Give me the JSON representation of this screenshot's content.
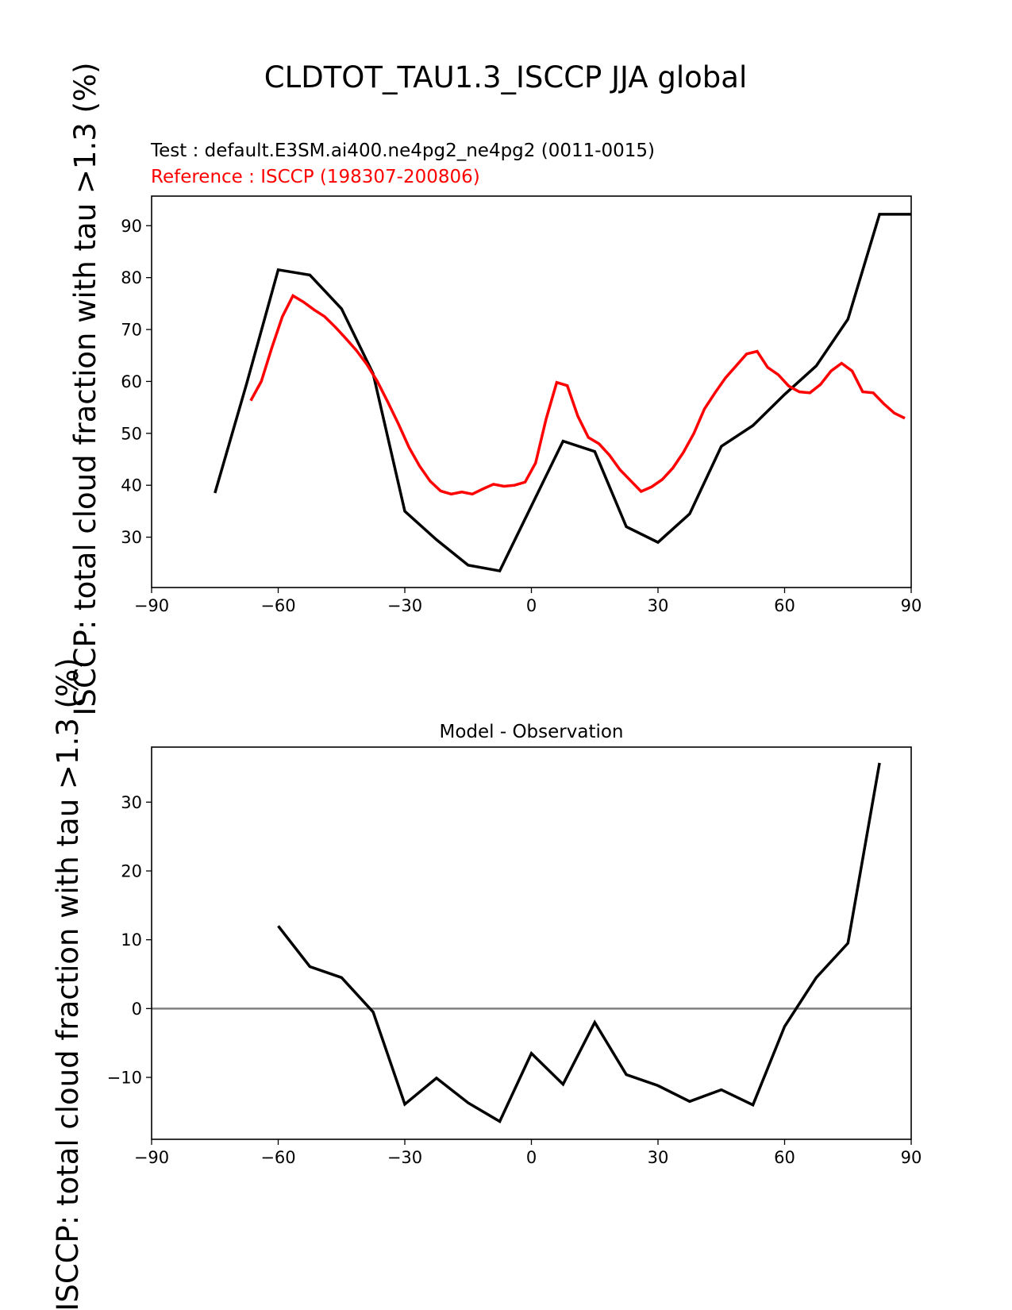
{
  "figure": {
    "title": "CLDTOT_TAU1.3_ISCCP JJA global",
    "test_label": "Test : default.E3SM.ai400.ne4pg2_ne4pg2 (0011-0015)",
    "reference_label": "Reference : ISCCP (198307-200806)",
    "colors": {
      "test": "#000000",
      "reference": "#ff0000",
      "zero_line": "#808080"
    }
  },
  "chart_data": [
    {
      "type": "line",
      "title": "",
      "xlabel": "",
      "ylabel": "ISCCP: total cloud fraction with tau >1.3 (%)",
      "xlim": [
        -90,
        90
      ],
      "ylim": [
        20.3,
        95.7
      ],
      "xticks": [
        -90,
        -60,
        -30,
        0,
        30,
        60,
        90
      ],
      "xtick_labels": [
        "−90",
        "−60",
        "−30",
        "0",
        "30",
        "60",
        "90"
      ],
      "yticks": [
        30,
        40,
        50,
        60,
        70,
        80,
        90
      ],
      "ytick_labels": [
        "30",
        "40",
        "50",
        "60",
        "70",
        "80",
        "90"
      ],
      "grid": false,
      "series": [
        {
          "name": "Test : default.E3SM.ai400.ne4pg2_ne4pg2 (0011-0015)",
          "color": "#000000",
          "x": [
            -75,
            -67.5,
            -60,
            -52.5,
            -45,
            -37.5,
            -30,
            -22.5,
            -15,
            -7.5,
            0,
            7.5,
            15,
            22.5,
            30,
            37.5,
            45,
            52.5,
            60,
            67.5,
            75,
            82.5,
            90
          ],
          "y": [
            38.5,
            59.5,
            81.5,
            80.5,
            74,
            61.5,
            35,
            29.5,
            24.6,
            23.5,
            36,
            48.5,
            46.5,
            32,
            29,
            34.5,
            47.5,
            51.5,
            57.5,
            63,
            72,
            92.2,
            92.2
          ]
        },
        {
          "name": "Reference : ISCCP (198307-200806)",
          "color": "#ff0000",
          "x": [
            -66.5,
            -64,
            -61.5,
            -59,
            -56.5,
            -54,
            -51.5,
            -49,
            -46.5,
            -44,
            -41.5,
            -39,
            -36.5,
            -34,
            -31.5,
            -29,
            -26.5,
            -24,
            -21.5,
            -19,
            -16.5,
            -14,
            -11.5,
            -9,
            -6.5,
            -4,
            -1.5,
            1,
            3.5,
            6,
            8.5,
            11,
            13.5,
            16,
            18.5,
            21,
            23.5,
            26,
            28.5,
            31,
            33.5,
            36,
            38.5,
            41,
            43.5,
            46,
            48.5,
            51,
            53.5,
            56,
            58.5,
            61,
            63.5,
            66,
            68.5,
            71,
            73.5,
            76,
            78.5,
            81,
            83.5,
            86,
            88.5
          ],
          "y": [
            56.3,
            60,
            66.5,
            72.5,
            76.5,
            75.3,
            73.8,
            72.5,
            70.5,
            68.3,
            66,
            63.3,
            60,
            56,
            51.8,
            47.3,
            43.7,
            40.8,
            38.9,
            38.3,
            38.7,
            38.3,
            39.3,
            40.2,
            39.8,
            40,
            40.6,
            44.3,
            52.8,
            59.8,
            59.2,
            53.3,
            49.2,
            48,
            45.8,
            43,
            40.9,
            38.8,
            39.7,
            41.1,
            43.3,
            46.3,
            50,
            54.7,
            57.8,
            60.7,
            63,
            65.3,
            65.8,
            62.7,
            61.3,
            59.1,
            58,
            57.8,
            59.4,
            62,
            63.5,
            62,
            58,
            57.8,
            55.7,
            53.9,
            52.9
          ]
        }
      ]
    },
    {
      "type": "line",
      "title": "Model - Observation",
      "xlabel": "",
      "ylabel": "ISCCP: total cloud fraction with tau >1.3 (%)",
      "xlim": [
        -90,
        90
      ],
      "ylim": [
        -19,
        38
      ],
      "xticks": [
        -90,
        -60,
        -30,
        0,
        30,
        60,
        90
      ],
      "xtick_labels": [
        "−90",
        "−60",
        "−30",
        "0",
        "30",
        "60",
        "90"
      ],
      "yticks": [
        -10,
        0,
        10,
        20,
        30
      ],
      "ytick_labels": [
        "−10",
        "0",
        "10",
        "20",
        "30"
      ],
      "grid": false,
      "reference_line_y": 0,
      "series": [
        {
          "name": "",
          "color": "#000000",
          "x": [
            -60,
            -52.5,
            -45,
            -37.5,
            -30,
            -22.5,
            -15,
            -7.5,
            0,
            7.5,
            15,
            22.5,
            30,
            37.5,
            45,
            52.5,
            60,
            67.5,
            75,
            82.5
          ],
          "y": [
            12,
            6.1,
            4.5,
            -0.5,
            -13.9,
            -10.1,
            -13.7,
            -16.4,
            -6.5,
            -11,
            -2,
            -9.6,
            -11.2,
            -13.5,
            -11.8,
            -14,
            -2.6,
            4.5,
            9.5,
            35.7
          ]
        }
      ]
    }
  ]
}
